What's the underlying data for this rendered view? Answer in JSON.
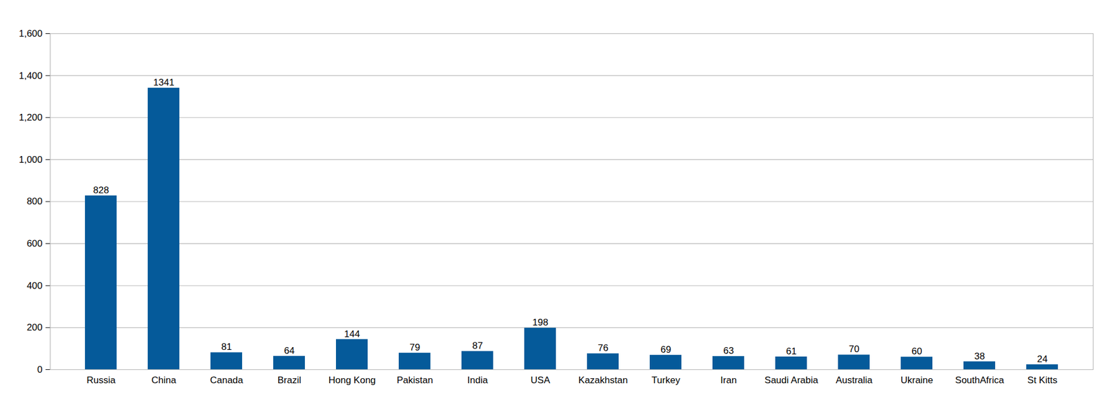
{
  "chart_data": {
    "type": "bar",
    "categories": [
      "Russia",
      "China",
      "Canada",
      "Brazil",
      "Hong Kong",
      "Pakistan",
      "India",
      "USA",
      "Kazakhstan",
      "Turkey",
      "Iran",
      "Saudi Arabia",
      "Australia",
      "Ukraine",
      "SouthAfrica",
      "St Kitts"
    ],
    "values": [
      828,
      1341,
      81,
      64,
      144,
      79,
      87,
      198,
      76,
      69,
      63,
      61,
      70,
      60,
      38,
      24
    ],
    "color": "#055a9a",
    "ylim": [
      0,
      1600
    ],
    "yticks": [
      0,
      200,
      400,
      600,
      800,
      1000,
      1200,
      1400,
      1600
    ],
    "grid": true,
    "data_labels": true
  }
}
